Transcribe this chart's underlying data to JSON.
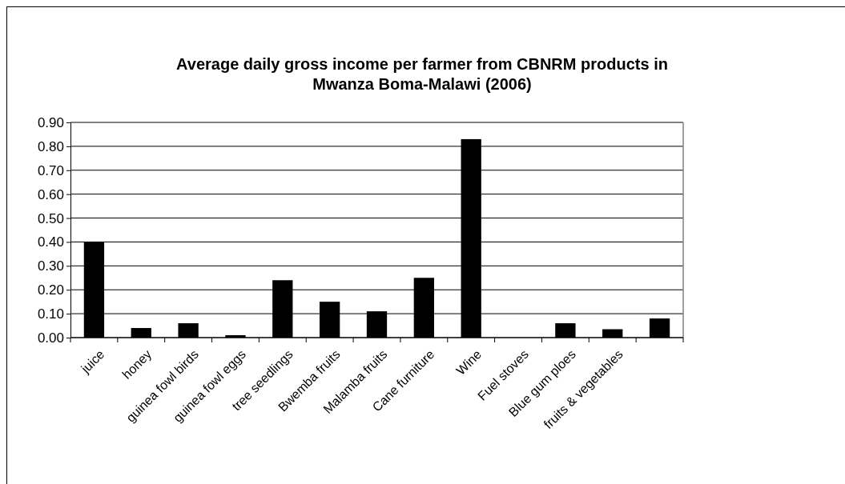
{
  "chart_data": {
    "type": "bar",
    "title": "Average daily gross income per farmer from CBNRM products in Mwanza Boma-Malawi (2006)",
    "categories": [
      "juice",
      "honey",
      "guinea fowl birds",
      "guinea fowl eggs",
      "tree seedlings",
      "Bwemba fruits",
      "Malamba fruits",
      "Cane furniture",
      "Wine",
      "Fuel stoves",
      "Blue gum ploes",
      "fruits & vegetables",
      null
    ],
    "values": [
      0.4,
      0.04,
      0.06,
      0.01,
      0.24,
      0.15,
      0.11,
      0.25,
      0.83,
      0,
      0.06,
      0.035,
      0.08
    ],
    "color": "#000000",
    "ylim": [
      0,
      0.9
    ],
    "yticks": [
      {
        "value": 0,
        "label": "0.00"
      },
      {
        "value": 0.1,
        "label": "0.10"
      },
      {
        "value": 0.2,
        "label": "0.20"
      },
      {
        "value": 0.3,
        "label": "0.30"
      },
      {
        "value": 0.4,
        "label": "0.40"
      },
      {
        "value": 0.5,
        "label": "0.50"
      },
      {
        "value": 0.6,
        "label": "0.60"
      },
      {
        "value": 0.7,
        "label": "0.70"
      },
      {
        "value": 0.8,
        "label": "0.80"
      },
      {
        "value": 0.9,
        "label": "0.90"
      }
    ],
    "grid": "y"
  }
}
